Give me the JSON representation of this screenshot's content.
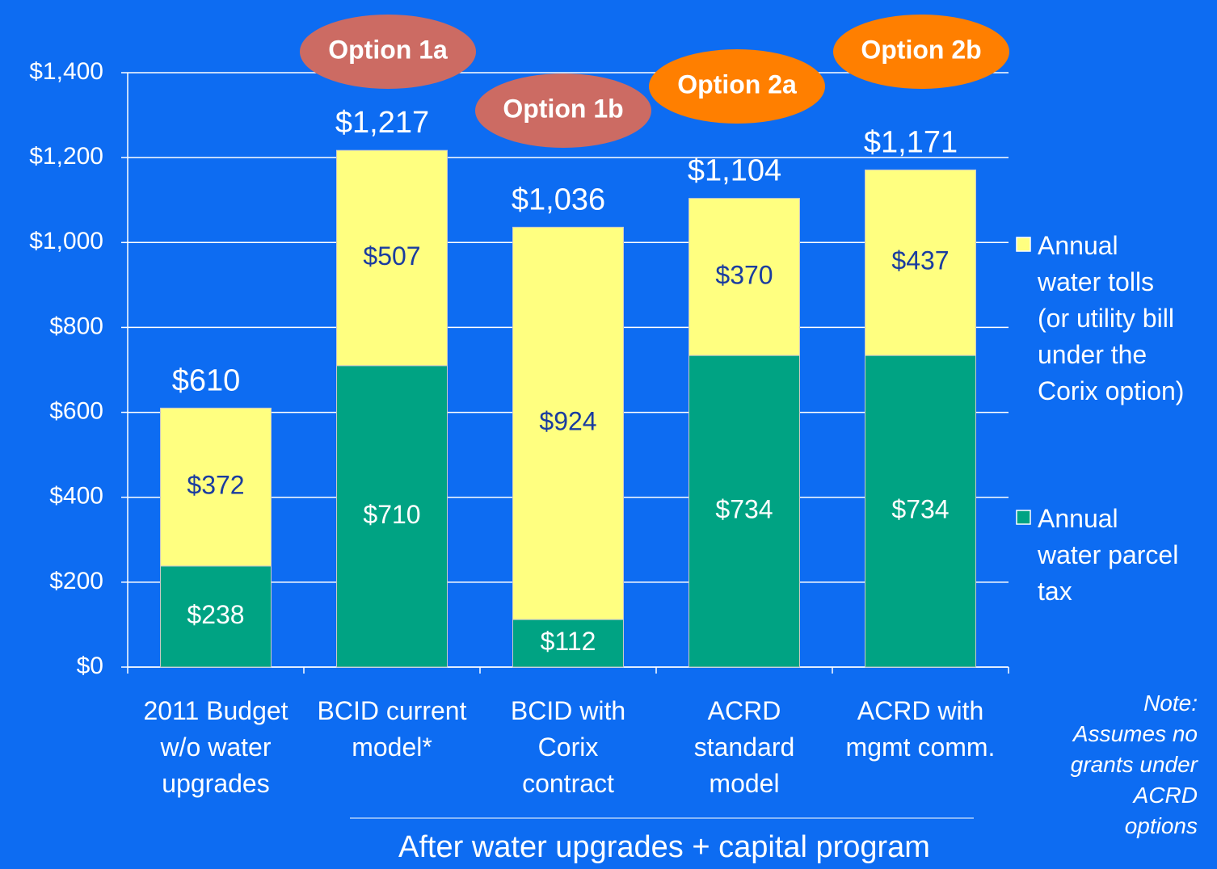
{
  "chart_data": {
    "type": "stacked_bar",
    "categories": [
      "2011 Budget\nw/o water\nupgrades",
      "BCID current\nmodel*",
      "BCID with\nCorix\ncontract",
      "ACRD\nstandard\nmodel",
      "ACRD with\nmgmt comm."
    ],
    "series": [
      {
        "name": "Annual\nwater parcel\ntax",
        "color": "#00a383",
        "label_color": "#ffffff",
        "values": [
          238,
          710,
          112,
          734,
          734
        ],
        "value_labels": [
          "$238",
          "$710",
          "$112",
          "$734",
          "$734"
        ]
      },
      {
        "name": "Annual\nwater tolls\n(or utility bill\nunder the\nCorix option)",
        "color": "#ffff80",
        "label_color": "#1a3ca0",
        "values": [
          372,
          507,
          924,
          370,
          437
        ],
        "value_labels": [
          "$372",
          "$507",
          "$924",
          "$370",
          "$437"
        ]
      }
    ],
    "totals": [
      610,
      1217,
      1036,
      1104,
      1171
    ],
    "total_labels": [
      "$610",
      "$1,217",
      "$1,036",
      "$1,104",
      "$1,171"
    ],
    "ylim": [
      0,
      1400
    ],
    "yticks": [
      {
        "value": 0,
        "label": "$0"
      },
      {
        "value": 200,
        "label": "$200"
      },
      {
        "value": 400,
        "label": "$400"
      },
      {
        "value": 600,
        "label": "$600"
      },
      {
        "value": 800,
        "label": "$800"
      },
      {
        "value": 1000,
        "label": "$1,000"
      },
      {
        "value": 1200,
        "label": "$1,200"
      },
      {
        "value": 1400,
        "label": "$1,400"
      }
    ],
    "grid": true,
    "legend": "right",
    "annotations": [
      {
        "text": "Option 1a",
        "color": "#cc6b63"
      },
      {
        "text": "Option 1b",
        "color": "#cc6b63"
      },
      {
        "text": "Option 2a",
        "color": "#ff7f00"
      },
      {
        "text": "Option 2b",
        "color": "#ff7f00"
      }
    ],
    "group_label": "After water upgrades + capital program",
    "note": "Note:\nAssumes no\ngrants under\nACRD\noptions"
  }
}
